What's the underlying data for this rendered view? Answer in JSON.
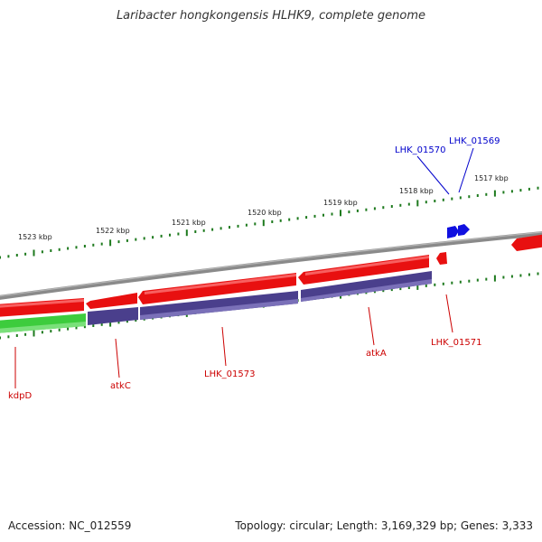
{
  "title": "Laribacter hongkongensis HLHK9, complete genome",
  "footer": {
    "accession": "Accession: NC_012559",
    "stats": "Topology: circular; Length: 3,169,329 bp; Genes: 3,333"
  },
  "colors": {
    "forward_cds": "#e81010",
    "reverse_cds": "#4a3f8c",
    "green_cds": "#3dcc3d",
    "blue_feature": "#1010e0",
    "backbone": "#808080",
    "tick": "#1e7a1e",
    "label_red": "#cc0000",
    "label_blue": "#0000cc"
  },
  "scale_labels": [
    "1523 kbp",
    "1522 kbp",
    "1521 kbp",
    "1520 kbp",
    "1519 kbp",
    "1518 kbp",
    "1517 kbp"
  ],
  "gene_labels": {
    "kdpD": "kdpD",
    "atkC": "atkC",
    "LHK_01573": "LHK_01573",
    "atkA": "atkA",
    "LHK_01571": "LHK_01571",
    "LHK_01570": "LHK_01570",
    "LHK_01569": "LHK_01569"
  }
}
